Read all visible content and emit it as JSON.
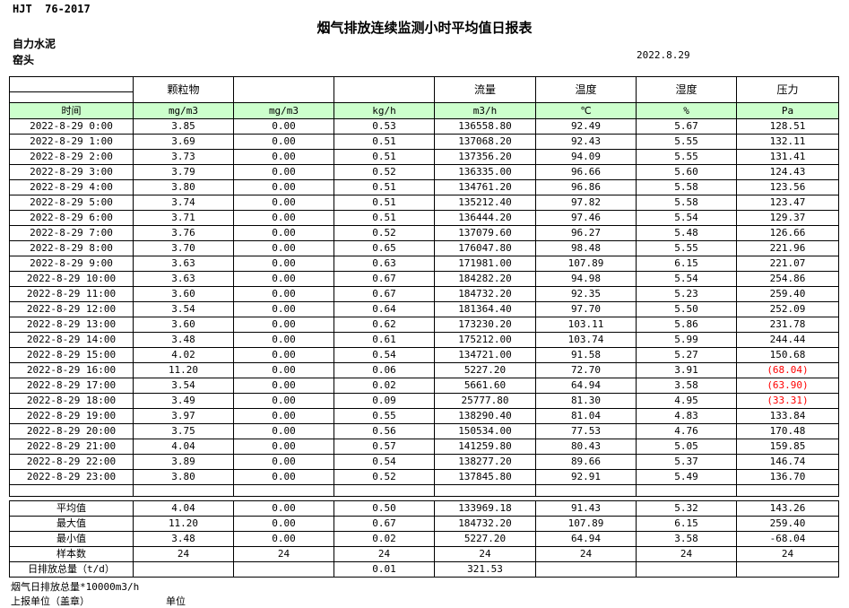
{
  "meta": {
    "standard": "HJT  76-2017",
    "title": "烟气排放连续监测小时平均值日报表",
    "company": "自力水泥",
    "location": "窑头",
    "date": "2022.8.29"
  },
  "table": {
    "group_headers": [
      "",
      "颗粒物",
      "",
      "",
      "流量",
      "温度",
      "湿度",
      "压力"
    ],
    "unit_row": [
      "时间",
      "mg/m3",
      "mg/m3",
      "kg/h",
      "m3/h",
      "℃",
      "%",
      "Pa"
    ],
    "rows": [
      [
        "2022-8-29 0:00",
        "3.85",
        "0.00",
        "0.53",
        "136558.80",
        "92.49",
        "5.67",
        "128.51"
      ],
      [
        "2022-8-29 1:00",
        "3.69",
        "0.00",
        "0.51",
        "137068.20",
        "92.43",
        "5.55",
        "132.11"
      ],
      [
        "2022-8-29 2:00",
        "3.73",
        "0.00",
        "0.51",
        "137356.20",
        "94.09",
        "5.55",
        "131.41"
      ],
      [
        "2022-8-29 3:00",
        "3.79",
        "0.00",
        "0.52",
        "136335.00",
        "96.66",
        "5.60",
        "124.43"
      ],
      [
        "2022-8-29 4:00",
        "3.80",
        "0.00",
        "0.51",
        "134761.20",
        "96.86",
        "5.58",
        "123.56"
      ],
      [
        "2022-8-29 5:00",
        "3.74",
        "0.00",
        "0.51",
        "135212.40",
        "97.82",
        "5.58",
        "123.47"
      ],
      [
        "2022-8-29 6:00",
        "3.71",
        "0.00",
        "0.51",
        "136444.20",
        "97.46",
        "5.54",
        "129.37"
      ],
      [
        "2022-8-29 7:00",
        "3.76",
        "0.00",
        "0.52",
        "137079.60",
        "96.27",
        "5.48",
        "126.66"
      ],
      [
        "2022-8-29 8:00",
        "3.70",
        "0.00",
        "0.65",
        "176047.80",
        "98.48",
        "5.55",
        "221.96"
      ],
      [
        "2022-8-29 9:00",
        "3.63",
        "0.00",
        "0.63",
        "171981.00",
        "107.89",
        "6.15",
        "221.07"
      ],
      [
        "2022-8-29 10:00",
        "3.63",
        "0.00",
        "0.67",
        "184282.20",
        "94.98",
        "5.54",
        "254.86"
      ],
      [
        "2022-8-29 11:00",
        "3.60",
        "0.00",
        "0.67",
        "184732.20",
        "92.35",
        "5.23",
        "259.40"
      ],
      [
        "2022-8-29 12:00",
        "3.54",
        "0.00",
        "0.64",
        "181364.40",
        "97.70",
        "5.50",
        "252.09"
      ],
      [
        "2022-8-29 13:00",
        "3.60",
        "0.00",
        "0.62",
        "173230.20",
        "103.11",
        "5.86",
        "231.78"
      ],
      [
        "2022-8-29 14:00",
        "3.48",
        "0.00",
        "0.61",
        "175212.00",
        "103.74",
        "5.99",
        "244.44"
      ],
      [
        "2022-8-29 15:00",
        "4.02",
        "0.00",
        "0.54",
        "134721.00",
        "91.58",
        "5.27",
        "150.68"
      ],
      [
        "2022-8-29 16:00",
        "11.20",
        "0.00",
        "0.06",
        "5227.20",
        "72.70",
        "3.91",
        "(68.04)"
      ],
      [
        "2022-8-29 17:00",
        "3.54",
        "0.00",
        "0.02",
        "5661.60",
        "64.94",
        "3.58",
        "(63.90)"
      ],
      [
        "2022-8-29 18:00",
        "3.49",
        "0.00",
        "0.09",
        "25777.80",
        "81.30",
        "4.95",
        "(33.31)"
      ],
      [
        "2022-8-29 19:00",
        "3.97",
        "0.00",
        "0.55",
        "138290.40",
        "81.04",
        "4.83",
        "133.84"
      ],
      [
        "2022-8-29 20:00",
        "3.75",
        "0.00",
        "0.56",
        "150534.00",
        "77.53",
        "4.76",
        "170.48"
      ],
      [
        "2022-8-29 21:00",
        "4.04",
        "0.00",
        "0.57",
        "141259.80",
        "80.43",
        "5.05",
        "159.85"
      ],
      [
        "2022-8-29 22:00",
        "3.89",
        "0.00",
        "0.54",
        "138277.20",
        "89.66",
        "5.37",
        "146.74"
      ],
      [
        "2022-8-29 23:00",
        "3.80",
        "0.00",
        "0.52",
        "137845.80",
        "92.91",
        "5.49",
        "136.70"
      ]
    ],
    "summary_rows": [
      [
        "平均值",
        "4.04",
        "0.00",
        "0.50",
        "133969.18",
        "91.43",
        "5.32",
        "143.26"
      ],
      [
        "最大值",
        "11.20",
        "0.00",
        "0.67",
        "184732.20",
        "107.89",
        "6.15",
        "259.40"
      ],
      [
        "最小值",
        "3.48",
        "0.00",
        "0.02",
        "5227.20",
        "64.94",
        "3.58",
        "-68.04"
      ],
      [
        "样本数",
        "24",
        "24",
        "24",
        "24",
        "24",
        "24",
        "24"
      ],
      [
        "日排放总量（t/d）",
        "",
        "",
        "0.01",
        "321.53",
        "",
        "",
        ""
      ]
    ]
  },
  "footer": {
    "note1": "烟气日排放总量*10000m3/h",
    "note2": "上报单位（盖章）",
    "note3": "单位"
  },
  "colors": {
    "header_green": "#CCFFCC",
    "negative_red": "#FF0000"
  }
}
